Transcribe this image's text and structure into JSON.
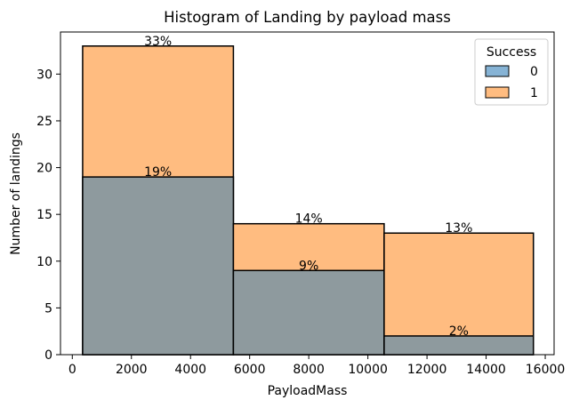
{
  "chart_data": {
    "type": "bar",
    "subtype": "stacked-histogram",
    "title": "Histogram of Landing by payload mass",
    "xlabel": "PayloadMass",
    "ylabel": "Number of landings",
    "xlim": [
      -400,
      16300
    ],
    "ylim": [
      0,
      34.5
    ],
    "xticks": [
      0,
      2000,
      4000,
      6000,
      8000,
      10000,
      12000,
      14000,
      16000
    ],
    "yticks": [
      0,
      5,
      10,
      15,
      20,
      25,
      30
    ],
    "bins": [
      {
        "x0": 350,
        "x1": 5450
      },
      {
        "x0": 5450,
        "x1": 10550
      },
      {
        "x0": 10550,
        "x1": 15600
      }
    ],
    "series": [
      {
        "name": "0",
        "color": "#8e9a9e",
        "values": [
          19,
          9,
          2
        ],
        "labels": [
          "19%",
          "9%",
          "2%"
        ]
      },
      {
        "name": "1",
        "color": "#ffbc80",
        "values": [
          33,
          14,
          13
        ],
        "labels": [
          "33%",
          "14%",
          "13%"
        ]
      }
    ],
    "legend": {
      "title": "Success",
      "placement": "top-right",
      "entries": [
        {
          "label": "0",
          "color": "#86b3d5"
        },
        {
          "label": "1",
          "color": "#ffbc80"
        }
      ]
    },
    "grid": false
  }
}
